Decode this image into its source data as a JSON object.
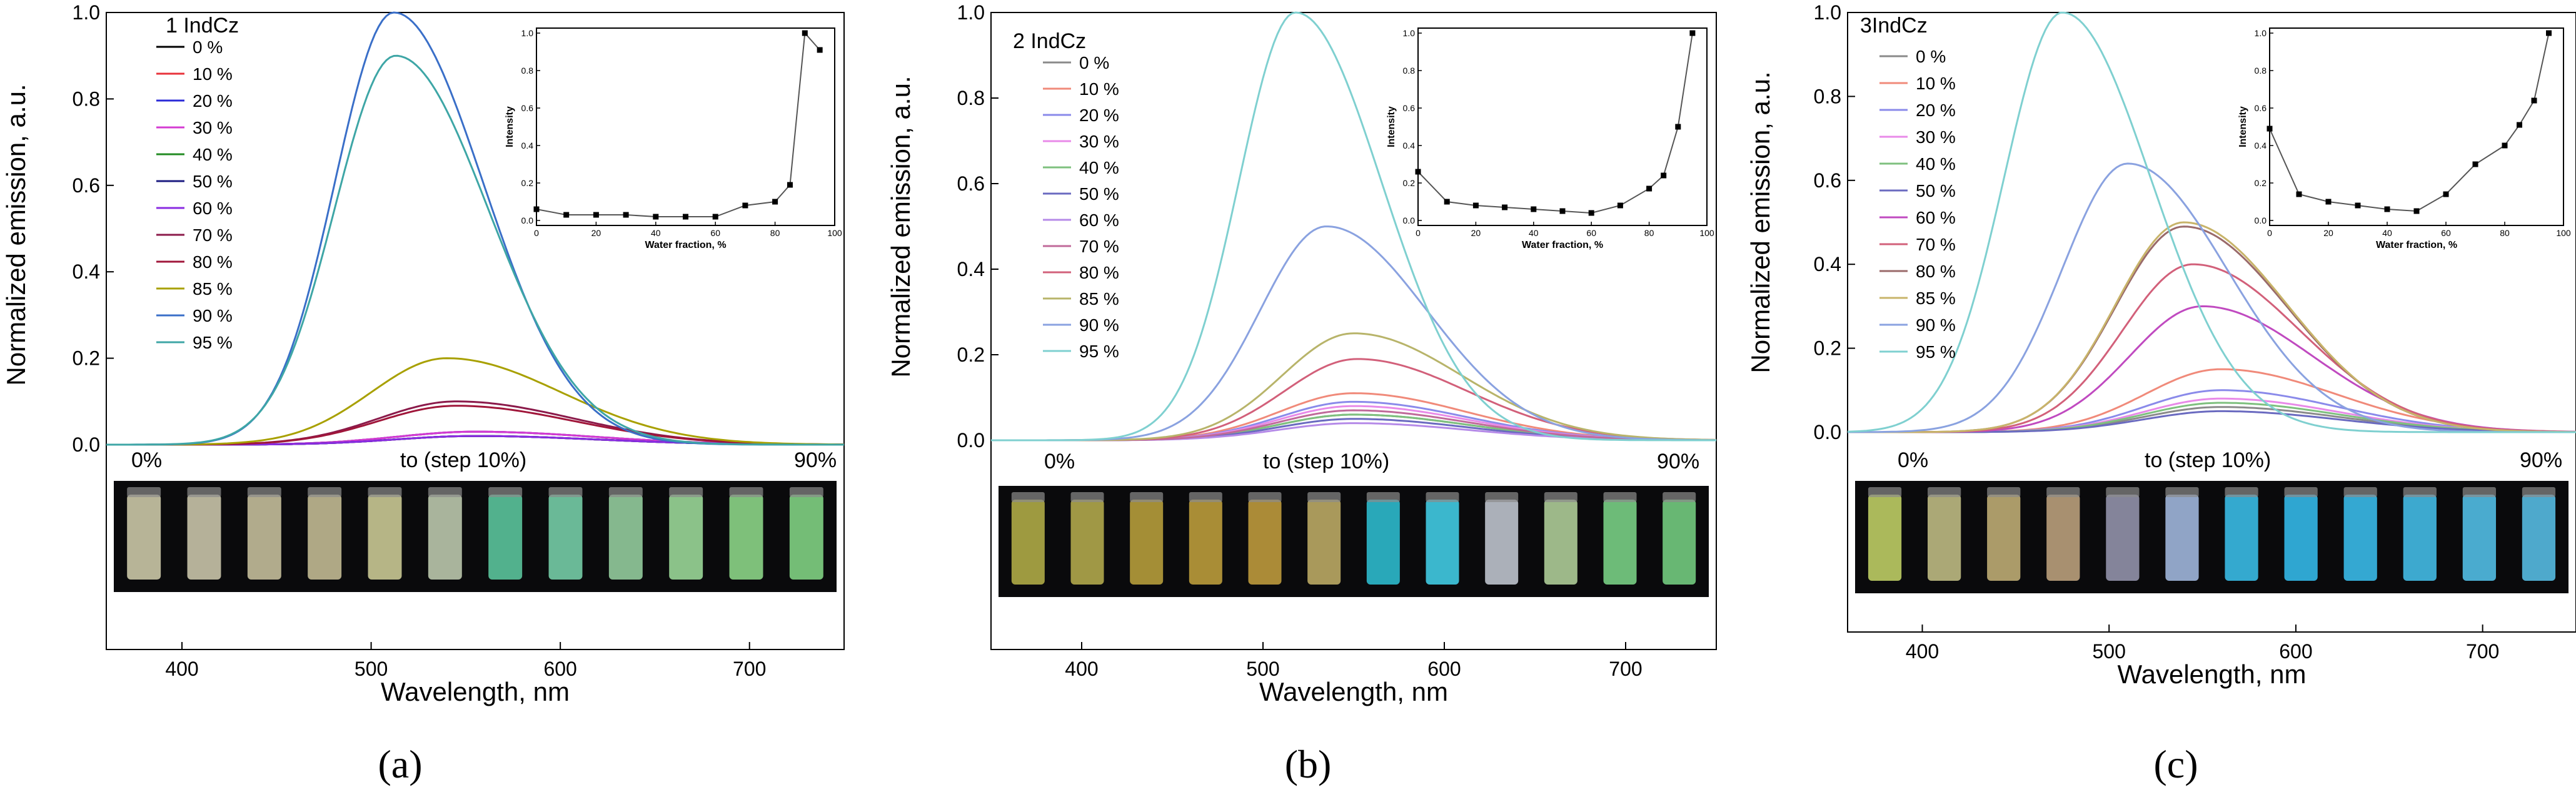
{
  "figure": {
    "panels": [
      {
        "caption_letter": "a",
        "caption": "(a)"
      },
      {
        "caption_letter": "b",
        "caption": "(b)"
      },
      {
        "caption_letter": "c",
        "caption": "(c)"
      }
    ]
  },
  "chart_data": [
    {
      "type": "line",
      "panel": "a",
      "title": "1 IndCz",
      "xlabel": "Wavelength, nm",
      "ylabel": "Normalized emission, a.u.",
      "xlim": [
        360,
        750
      ],
      "ylim": [
        0,
        1.0
      ],
      "xticks": [
        400,
        500,
        600,
        700
      ],
      "yticks": [
        0.0,
        0.2,
        0.4,
        0.6,
        0.8,
        1.0
      ],
      "ytick_labels": [
        "0.0",
        "0.2",
        "0.4",
        "0.6",
        "0.8",
        "1.0"
      ],
      "photo_labels": {
        "start": "0%",
        "middle": "to (step 10%)",
        "end": "90%"
      },
      "photo_vials": [
        "#d6d2b0",
        "#d3cfb3",
        "#cfc8a3",
        "#ccc49b",
        "#d5d49c",
        "#c6d2b6",
        "#5fcfa4",
        "#7bd8b0",
        "#9bd7a6",
        "#a2e3a0",
        "#93e18e",
        "#87dd8a"
      ],
      "series": [
        {
          "name": "0 %",
          "color": "#000000",
          "peak_x": 555,
          "peak_y": 0.02
        },
        {
          "name": "10 %",
          "color": "#e8323a",
          "peak_x": 555,
          "peak_y": 0.03
        },
        {
          "name": "20 %",
          "color": "#2a2ad8",
          "peak_x": 555,
          "peak_y": 0.03
        },
        {
          "name": "30 %",
          "color": "#d43bd2",
          "peak_x": 555,
          "peak_y": 0.03
        },
        {
          "name": "40 %",
          "color": "#228b22",
          "peak_x": 555,
          "peak_y": 0.02
        },
        {
          "name": "50 %",
          "color": "#1b1b80",
          "peak_x": 555,
          "peak_y": 0.02
        },
        {
          "name": "60 %",
          "color": "#8a2be2",
          "peak_x": 555,
          "peak_y": 0.02
        },
        {
          "name": "70 %",
          "color": "#8b1a4a",
          "peak_x": 545,
          "peak_y": 0.1
        },
        {
          "name": "80 %",
          "color": "#a0163a",
          "peak_x": 545,
          "peak_y": 0.09
        },
        {
          "name": "85 %",
          "color": "#a8a000",
          "peak_x": 540,
          "peak_y": 0.2
        },
        {
          "name": "90 %",
          "color": "#3a6fc8",
          "peak_x": 512,
          "peak_y": 1.0
        },
        {
          "name": "95 %",
          "color": "#3ea6a6",
          "peak_x": 513,
          "peak_y": 0.9
        }
      ],
      "inset": {
        "xlabel": "Water fraction, %",
        "ylabel": "Intensity",
        "xlim": [
          0,
          100
        ],
        "ylim": [
          0,
          1.0
        ],
        "xticks": [
          0,
          20,
          40,
          60,
          80,
          100
        ],
        "yticks": [
          0.0,
          0.2,
          0.4,
          0.6,
          0.8,
          1.0
        ],
        "ytick_labels": [
          "0.0",
          "0.2",
          "0.4",
          "0.6",
          "0.8",
          "1.0"
        ],
        "x": [
          0,
          10,
          20,
          30,
          40,
          50,
          60,
          70,
          80,
          85,
          90,
          95
        ],
        "y": [
          0.06,
          0.03,
          0.03,
          0.03,
          0.02,
          0.02,
          0.02,
          0.08,
          0.1,
          0.19,
          1.0,
          0.91
        ]
      }
    },
    {
      "type": "line",
      "panel": "b",
      "title": "2 IndCz",
      "xlabel": "Wavelength, nm",
      "ylabel": "Normalized emission, a.u.",
      "xlim": [
        350,
        750
      ],
      "ylim": [
        0,
        1.0
      ],
      "xticks": [
        400,
        500,
        600,
        700
      ],
      "yticks": [
        0.0,
        0.2,
        0.4,
        0.6,
        0.8,
        1.0
      ],
      "ytick_labels": [
        "0.0",
        "0.2",
        "0.4",
        "0.6",
        "0.8",
        "1.0"
      ],
      "photo_labels": {
        "start": "0%",
        "middle": "to (step 10%)",
        "end": "90%"
      },
      "photo_vials": [
        "#b9b44a",
        "#bbb250",
        "#c0a63e",
        "#c6a53e",
        "#c8a23f",
        "#c6b36a",
        "#2fc4d8",
        "#44d6f0",
        "#c8ced8",
        "#b7d7a0",
        "#7fda8c",
        "#79d686"
      ],
      "series": [
        {
          "name": "0 %",
          "color": "#8a8a8a",
          "peak_x": 550,
          "peak_y": 0.06
        },
        {
          "name": "10 %",
          "color": "#f08a7a",
          "peak_x": 550,
          "peak_y": 0.11
        },
        {
          "name": "20 %",
          "color": "#8a8aea",
          "peak_x": 550,
          "peak_y": 0.09
        },
        {
          "name": "30 %",
          "color": "#e88ae8",
          "peak_x": 550,
          "peak_y": 0.08
        },
        {
          "name": "40 %",
          "color": "#7ec07e",
          "peak_x": 550,
          "peak_y": 0.06
        },
        {
          "name": "50 %",
          "color": "#6a6ac0",
          "peak_x": 550,
          "peak_y": 0.05
        },
        {
          "name": "60 %",
          "color": "#b58ae8",
          "peak_x": 550,
          "peak_y": 0.04
        },
        {
          "name": "70 %",
          "color": "#c06a9a",
          "peak_x": 550,
          "peak_y": 0.07
        },
        {
          "name": "80 %",
          "color": "#d2607a",
          "peak_x": 552,
          "peak_y": 0.19
        },
        {
          "name": "85 %",
          "color": "#b8b46a",
          "peak_x": 550,
          "peak_y": 0.25
        },
        {
          "name": "90 %",
          "color": "#8aa2e0",
          "peak_x": 535,
          "peak_y": 0.5
        },
        {
          "name": "95 %",
          "color": "#7fd0d0",
          "peak_x": 518,
          "peak_y": 1.0
        }
      ],
      "inset": {
        "xlabel": "Water fraction, %",
        "ylabel": "Intensity",
        "xlim": [
          0,
          100
        ],
        "ylim": [
          0,
          1.0
        ],
        "xticks": [
          0,
          20,
          40,
          60,
          80,
          100
        ],
        "yticks": [
          0.0,
          0.2,
          0.4,
          0.6,
          0.8,
          1.0
        ],
        "ytick_labels": [
          "0.0",
          "0.2",
          "0.4",
          "0.6",
          "0.8",
          "1.0"
        ],
        "x": [
          0,
          10,
          20,
          30,
          40,
          50,
          60,
          70,
          80,
          85,
          90,
          95
        ],
        "y": [
          0.26,
          0.1,
          0.08,
          0.07,
          0.06,
          0.05,
          0.04,
          0.08,
          0.17,
          0.24,
          0.5,
          1.0
        ]
      }
    },
    {
      "type": "line",
      "panel": "c",
      "title": "3IndCz",
      "xlabel": "Wavelength, nm",
      "ylabel": "Normalized emission, a.u.",
      "xlim": [
        360,
        750
      ],
      "ylim": [
        0,
        1.0
      ],
      "xticks": [
        400,
        500,
        600,
        700
      ],
      "yticks": [
        0.0,
        0.2,
        0.4,
        0.6,
        0.8,
        1.0
      ],
      "ytick_labels": [
        "0.0",
        "0.2",
        "0.4",
        "0.6",
        "0.8",
        "1.0"
      ],
      "photo_labels": {
        "start": "0%",
        "middle": "to (step 10%)",
        "end": "90%"
      },
      "photo_vials": [
        "#c8d86a",
        "#c8c48a",
        "#c8b57a",
        "#c4a882",
        "#9a9ab4",
        "#a8c0e8",
        "#3cc6f2",
        "#36c2f4",
        "#3cc4f6",
        "#46c6f2",
        "#56c8f2",
        "#5ac6ee"
      ],
      "series": [
        {
          "name": "0 %",
          "color": "#8a8a8a",
          "peak_x": 560,
          "peak_y": 0.06
        },
        {
          "name": "10 %",
          "color": "#f08a7a",
          "peak_x": 560,
          "peak_y": 0.15
        },
        {
          "name": "20 %",
          "color": "#8a8aea",
          "peak_x": 560,
          "peak_y": 0.1
        },
        {
          "name": "30 %",
          "color": "#e88ae8",
          "peak_x": 560,
          "peak_y": 0.08
        },
        {
          "name": "40 %",
          "color": "#7ec07e",
          "peak_x": 560,
          "peak_y": 0.07
        },
        {
          "name": "50 %",
          "color": "#6a6ac0",
          "peak_x": 560,
          "peak_y": 0.05
        },
        {
          "name": "60 %",
          "color": "#c04ac0",
          "peak_x": 550,
          "peak_y": 0.3
        },
        {
          "name": "70 %",
          "color": "#d2607a",
          "peak_x": 545,
          "peak_y": 0.4
        },
        {
          "name": "80 %",
          "color": "#9a6a6a",
          "peak_x": 540,
          "peak_y": 0.49
        },
        {
          "name": "85 %",
          "color": "#c8b46a",
          "peak_x": 540,
          "peak_y": 0.5
        },
        {
          "name": "90 %",
          "color": "#8aa2e0",
          "peak_x": 510,
          "peak_y": 0.64
        },
        {
          "name": "95 %",
          "color": "#7fd0d0",
          "peak_x": 475,
          "peak_y": 1.0
        }
      ],
      "inset": {
        "xlabel": "Water fraction, %",
        "ylabel": "Intensity",
        "xlim": [
          0,
          100
        ],
        "ylim": [
          0,
          1.0
        ],
        "xticks": [
          0,
          20,
          40,
          60,
          80,
          100
        ],
        "yticks": [
          0.0,
          0.2,
          0.4,
          0.6,
          0.8,
          1.0
        ],
        "ytick_labels": [
          "0.0",
          "0.2",
          "0.4",
          "0.6",
          "0.8",
          "1.0"
        ],
        "x": [
          0,
          10,
          20,
          30,
          40,
          50,
          60,
          70,
          80,
          85,
          90,
          95
        ],
        "y": [
          0.49,
          0.14,
          0.1,
          0.08,
          0.06,
          0.05,
          0.14,
          0.3,
          0.4,
          0.51,
          0.64,
          1.0
        ]
      }
    }
  ]
}
